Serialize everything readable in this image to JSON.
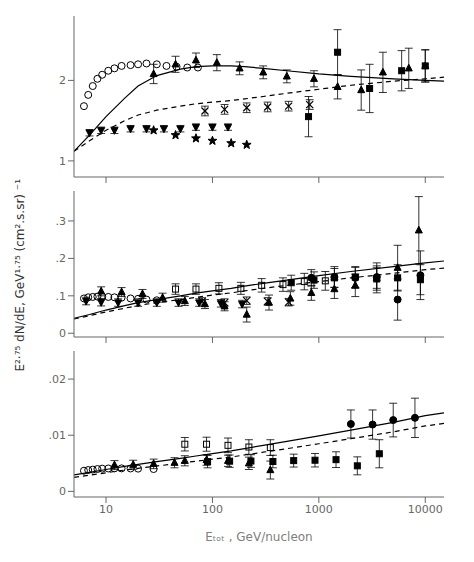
{
  "chart_data": [
    {
      "type": "line",
      "log": "x",
      "grid": false,
      "tick_labels": "y",
      "xlim": [
        5,
        15000
      ],
      "xticks": [
        10,
        100,
        1000,
        10000
      ],
      "ylim": [
        0.8,
        2.8
      ],
      "yticks": [
        1,
        2
      ],
      "series": [
        {
          "type": "line",
          "line_style": "solid",
          "color": "#000000",
          "x": [
            5,
            7,
            10,
            15,
            20,
            30,
            50,
            70,
            100,
            150,
            200,
            300,
            500,
            1000,
            2000,
            5000,
            10000,
            15000
          ],
          "values": [
            1.12,
            1.32,
            1.55,
            1.78,
            1.93,
            2.06,
            2.14,
            2.17,
            2.18,
            2.18,
            2.17,
            2.15,
            2.12,
            2.08,
            2.05,
            2.02,
            2.0,
            1.99
          ]
        },
        {
          "type": "line",
          "line_style": "dashed",
          "color": "#000000",
          "x": [
            5,
            7,
            10,
            15,
            20,
            30,
            50,
            70,
            100,
            150,
            200,
            300,
            500,
            1000,
            2000,
            5000,
            10000,
            15000
          ],
          "values": [
            1.12,
            1.25,
            1.38,
            1.5,
            1.57,
            1.63,
            1.68,
            1.71,
            1.73,
            1.75,
            1.77,
            1.8,
            1.84,
            1.89,
            1.94,
            1.99,
            2.02,
            2.04
          ]
        },
        {
          "type": "scatter",
          "marker": "circle_open",
          "color": "#000000",
          "x": [
            6.2,
            6.8,
            7.5,
            8.3,
            9.2,
            10.5,
            12,
            14,
            17,
            20,
            24,
            30,
            37,
            46,
            58,
            73
          ],
          "values": [
            1.68,
            1.82,
            1.93,
            2.02,
            2.07,
            2.12,
            2.15,
            2.18,
            2.19,
            2.2,
            2.21,
            2.2,
            2.18,
            2.17,
            2.16,
            2.16
          ]
        },
        {
          "type": "scatter",
          "marker": "triangle_up",
          "color": "#000000",
          "x": [
            28,
            45,
            70,
            110,
            180,
            300,
            500,
            900,
            1500,
            2500,
            4000,
            7000,
            10000
          ],
          "values": [
            2.08,
            2.2,
            2.25,
            2.22,
            2.15,
            2.1,
            2.05,
            2.02,
            1.92,
            1.88,
            2.1,
            2.15,
            2.18
          ],
          "yerr": [
            0.12,
            0.1,
            0.09,
            0.1,
            0.08,
            0.08,
            0.08,
            0.1,
            0.15,
            0.25,
            0.25,
            0.25,
            0.2
          ]
        },
        {
          "type": "scatter",
          "marker": "triangle_down",
          "color": "#000000",
          "x": [
            7,
            9,
            12,
            17,
            24,
            35,
            50,
            70,
            100,
            140
          ],
          "values": [
            1.35,
            1.38,
            1.38,
            1.4,
            1.4,
            1.4,
            1.4,
            1.42,
            1.42,
            1.42
          ],
          "yerr": [
            0.04,
            0.04,
            0.04,
            0.04,
            0.04,
            0.04,
            0.04,
            0.04,
            0.04,
            0.04
          ]
        },
        {
          "type": "scatter",
          "marker": "star",
          "color": "#000000",
          "x": [
            28,
            45,
            70,
            100,
            150,
            210
          ],
          "values": [
            1.38,
            1.32,
            1.28,
            1.25,
            1.22,
            1.2
          ]
        },
        {
          "type": "scatter",
          "marker": "x",
          "color": "#000000",
          "x": [
            85,
            130,
            210,
            330,
            520,
            820
          ],
          "values": [
            1.62,
            1.64,
            1.66,
            1.67,
            1.68,
            1.7
          ],
          "yerr": [
            0.06,
            0.06,
            0.06,
            0.06,
            0.06,
            0.06
          ]
        },
        {
          "type": "scatter",
          "marker": "square",
          "color": "#000000",
          "x": [
            800,
            1500,
            3000,
            6000,
            10000
          ],
          "values": [
            1.55,
            2.35,
            1.9,
            2.12,
            2.18
          ],
          "yerr": [
            0.25,
            0.28,
            0.3,
            0.25,
            0.2
          ]
        }
      ]
    },
    {
      "type": "line",
      "log": "x",
      "grid": false,
      "tick_labels": "y",
      "ylabel": "E²·⁷⁵ dN/dE, GeV¹·⁷⁵ (cm².s.sr) ⁻¹",
      "xlim": [
        5,
        15000
      ],
      "xticks": [
        10,
        100,
        1000,
        10000
      ],
      "ylim": [
        -0.01,
        0.38
      ],
      "yticks": [
        0,
        {
          "value": 0.1,
          "label": ".1"
        },
        {
          "value": 0.2,
          "label": ".2"
        },
        {
          "value": 0.3,
          "label": ".3"
        }
      ],
      "series": [
        {
          "type": "line",
          "line_style": "solid",
          "color": "#000000",
          "x": [
            5,
            7,
            10,
            15,
            20,
            30,
            50,
            70,
            100,
            150,
            200,
            300,
            500,
            1000,
            2000,
            5000,
            10000,
            15000
          ],
          "values": [
            0.04,
            0.05,
            0.062,
            0.074,
            0.082,
            0.09,
            0.1,
            0.107,
            0.113,
            0.12,
            0.126,
            0.133,
            0.142,
            0.154,
            0.165,
            0.178,
            0.188,
            0.193
          ]
        },
        {
          "type": "line",
          "line_style": "dashed",
          "color": "#000000",
          "x": [
            5,
            7,
            10,
            15,
            20,
            30,
            50,
            70,
            100,
            150,
            200,
            300,
            500,
            1000,
            2000,
            5000,
            10000,
            15000
          ],
          "values": [
            0.038,
            0.047,
            0.057,
            0.067,
            0.074,
            0.082,
            0.09,
            0.096,
            0.102,
            0.108,
            0.113,
            0.12,
            0.128,
            0.138,
            0.148,
            0.16,
            0.17,
            0.174
          ]
        },
        {
          "type": "scatter",
          "marker": "circle_open",
          "color": "#000000",
          "x": [
            6.2,
            6.8,
            7.5,
            8.3,
            9.2,
            10.5,
            12,
            14,
            17,
            20,
            24,
            30
          ],
          "values": [
            0.093,
            0.096,
            0.097,
            0.098,
            0.098,
            0.097,
            0.096,
            0.095,
            0.093,
            0.092,
            0.09,
            0.088
          ]
        },
        {
          "type": "scatter",
          "marker": "triangle_up",
          "color": "#000000",
          "x": [
            9,
            14,
            22,
            34,
            55,
            85,
            130,
            210,
            340,
            540,
            850,
            1400,
            2200,
            3500,
            5500,
            8700
          ],
          "values": [
            0.112,
            0.11,
            0.105,
            0.095,
            0.086,
            0.078,
            0.072,
            0.05,
            0.082,
            0.093,
            0.108,
            0.118,
            0.128,
            0.148,
            0.175,
            0.275
          ],
          "yerr": [
            0.012,
            0.012,
            0.012,
            0.012,
            0.012,
            0.012,
            0.012,
            0.02,
            0.02,
            0.018,
            0.02,
            0.025,
            0.03,
            0.04,
            0.06,
            0.09
          ]
        },
        {
          "type": "scatter",
          "marker": "triangle_down",
          "color": "#000000",
          "x": [
            6.5,
            9,
            13,
            20,
            30,
            48,
            75,
            120,
            190
          ],
          "values": [
            0.086,
            0.083,
            0.082,
            0.082,
            0.082,
            0.082,
            0.082,
            0.08,
            0.078
          ],
          "yerr": [
            0.01,
            0.01,
            0.01,
            0.01,
            0.01,
            0.01,
            0.01,
            0.01,
            0.01
          ]
        },
        {
          "type": "scatter",
          "marker": "x",
          "color": "#000000",
          "x": [
            80,
            130,
            210,
            330,
            520
          ],
          "values": [
            0.085,
            0.082,
            0.087,
            0.085,
            0.083
          ],
          "yerr": [
            0.01,
            0.01,
            0.01,
            0.01,
            0.01
          ]
        },
        {
          "type": "scatter",
          "marker": "square_open",
          "color": "#000000",
          "x": [
            45,
            70,
            115,
            185,
            290,
            460,
            730,
            1150
          ],
          "values": [
            0.118,
            0.118,
            0.12,
            0.12,
            0.128,
            0.13,
            0.138,
            0.14
          ],
          "yerr": [
            0.014,
            0.014,
            0.015,
            0.016,
            0.018,
            0.018,
            0.022,
            0.025
          ]
        },
        {
          "type": "scatter",
          "marker": "square",
          "color": "#000000",
          "x": [
            550,
            900,
            1400,
            2200,
            3500,
            5500,
            9000
          ],
          "values": [
            0.135,
            0.142,
            0.148,
            0.15,
            0.145,
            0.148,
            0.143
          ],
          "yerr": [
            0.02,
            0.022,
            0.025,
            0.028,
            0.03,
            0.035,
            0.04
          ]
        },
        {
          "type": "scatter",
          "marker": "circle",
          "color": "#000000",
          "x": [
            850,
            1400,
            2200,
            3500,
            5500,
            9000
          ],
          "values": [
            0.148,
            0.15,
            0.148,
            0.15,
            0.09,
            0.155
          ],
          "yerr": [
            0.022,
            0.028,
            0.028,
            0.03,
            0.055,
            0.065
          ]
        }
      ]
    },
    {
      "type": "line",
      "log": "x",
      "grid": false,
      "xlabel": "Eₜₒₜ , GeV/nucleon",
      "xlim": [
        5,
        15000
      ],
      "xticks": [
        10,
        100,
        1000,
        10000
      ],
      "ylim": [
        -0.001,
        0.025
      ],
      "yticks": [
        0,
        {
          "value": 0.01,
          "label": ".01"
        },
        {
          "value": 0.02,
          "label": ".02"
        }
      ],
      "series": [
        {
          "type": "line",
          "line_style": "solid",
          "color": "#000000",
          "x": [
            5,
            7,
            10,
            15,
            20,
            30,
            50,
            70,
            100,
            150,
            200,
            300,
            500,
            1000,
            2000,
            5000,
            10000,
            15000
          ],
          "values": [
            0.00295,
            0.0034,
            0.0039,
            0.00445,
            0.0048,
            0.0053,
            0.00588,
            0.0063,
            0.00672,
            0.0072,
            0.00762,
            0.0082,
            0.0089,
            0.0099,
            0.0109,
            0.0123,
            0.0135,
            0.014
          ]
        },
        {
          "type": "line",
          "line_style": "dashed",
          "color": "#000000",
          "x": [
            5,
            7,
            10,
            15,
            20,
            30,
            50,
            70,
            100,
            150,
            200,
            300,
            500,
            1000,
            2000,
            5000,
            10000,
            15000
          ],
          "values": [
            0.0025,
            0.00288,
            0.00332,
            0.0038,
            0.0041,
            0.00452,
            0.00503,
            0.00538,
            0.00573,
            0.00612,
            0.00648,
            0.00698,
            0.0076,
            0.00848,
            0.00938,
            0.0106,
            0.01165,
            0.0121
          ]
        },
        {
          "type": "scatter",
          "marker": "circle_open",
          "color": "#000000",
          "x": [
            6.2,
            6.8,
            7.5,
            8.3,
            9.2,
            10.5,
            12,
            14,
            17,
            20,
            28
          ],
          "values": [
            0.00368,
            0.0038,
            0.00388,
            0.00398,
            0.00405,
            0.00408,
            0.0041,
            0.0041,
            0.00408,
            0.00405,
            0.00398
          ]
        },
        {
          "type": "scatter",
          "marker": "triangle_up",
          "color": "#000000",
          "x": [
            12,
            18,
            28,
            44
          ],
          "values": [
            0.00468,
            0.00475,
            0.0049,
            0.0051
          ],
          "yerr": [
            0.0008,
            0.0008,
            0.00085,
            0.0009
          ]
        },
        {
          "type": "scatter",
          "marker": "triangle_up",
          "color": "#000000",
          "x": [
            55,
            88,
            140,
            220,
            350
          ],
          "values": [
            0.00545,
            0.0056,
            0.00545,
            0.005,
            0.0038
          ],
          "yerr": [
            0.0009,
            0.00095,
            0.001,
            0.0011,
            0.0016
          ]
        },
        {
          "type": "scatter",
          "marker": "square_open",
          "color": "#000000",
          "x": [
            55,
            88,
            140,
            220,
            350
          ],
          "values": [
            0.0084,
            0.0084,
            0.0082,
            0.0079,
            0.0078
          ],
          "yerr": [
            0.0012,
            0.00125,
            0.0013,
            0.0013,
            0.0014
          ]
        },
        {
          "type": "scatter",
          "marker": "square",
          "color": "#000000",
          "x": [
            90,
            145,
            230,
            370,
            580,
            920,
            1450,
            2300,
            3700
          ],
          "values": [
            0.0053,
            0.00538,
            0.0054,
            0.00532,
            0.00548,
            0.00555,
            0.00565,
            0.00455,
            0.0067
          ],
          "yerr": [
            0.0011,
            0.0011,
            0.00112,
            0.00112,
            0.00115,
            0.0012,
            0.0014,
            0.0016,
            0.0025
          ]
        },
        {
          "type": "scatter",
          "marker": "circle",
          "color": "#000000",
          "x": [
            2000,
            3200,
            5000,
            8000
          ],
          "values": [
            0.012,
            0.0119,
            0.0127,
            0.0131
          ],
          "yerr": [
            0.0025,
            0.0026,
            0.003,
            0.0035
          ]
        }
      ]
    }
  ]
}
